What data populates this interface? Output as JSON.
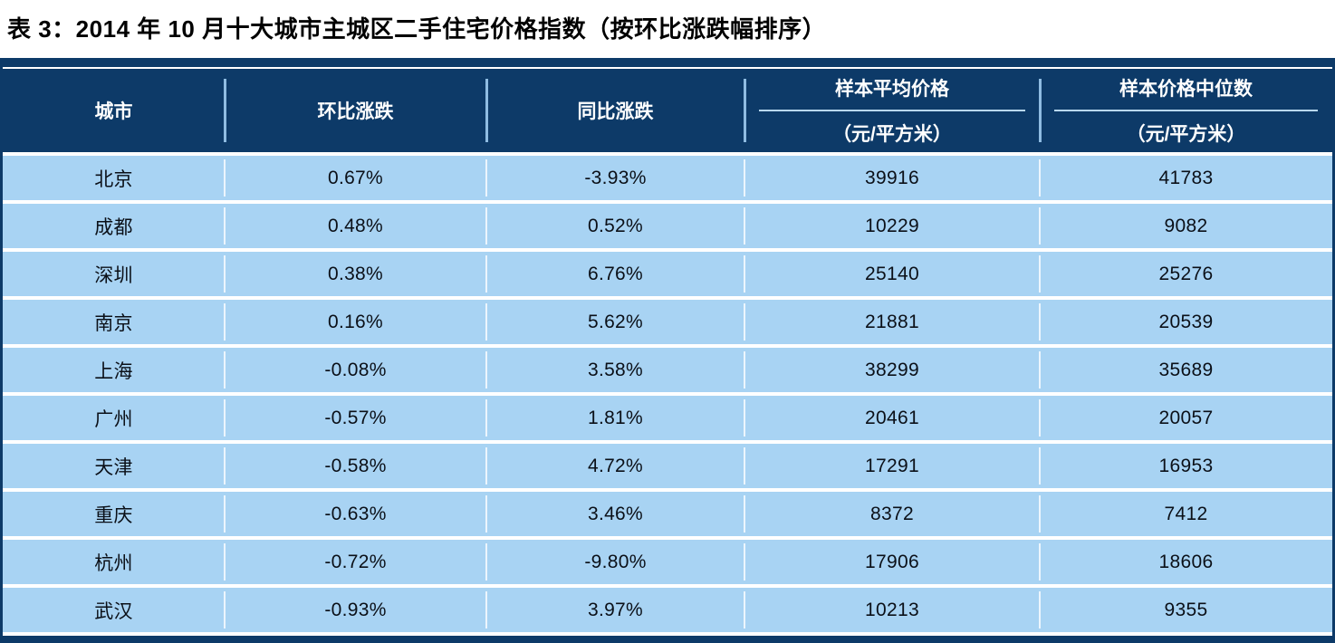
{
  "title": "表 3：2014 年 10 月十大城市主城区二手住宅价格指数（按环比涨跌幅排序）",
  "colors": {
    "header_bg": "#0d3a68",
    "row_bg": "#a8d3f3",
    "header_text": "#ffffff",
    "body_text": "#0b1018"
  },
  "table": {
    "columns": [
      {
        "label": "城市",
        "sub": ""
      },
      {
        "label": "环比涨跌",
        "sub": ""
      },
      {
        "label": "同比涨跌",
        "sub": ""
      },
      {
        "label": "样本平均价格",
        "sub": "（元/平方米）"
      },
      {
        "label": "样本价格中位数",
        "sub": "（元/平方米）"
      }
    ],
    "rows": [
      {
        "city": "北京",
        "mom": "0.67%",
        "yoy": "-3.93%",
        "avg": "39916",
        "median": "41783"
      },
      {
        "city": "成都",
        "mom": "0.48%",
        "yoy": "0.52%",
        "avg": "10229",
        "median": "9082"
      },
      {
        "city": "深圳",
        "mom": "0.38%",
        "yoy": "6.76%",
        "avg": "25140",
        "median": "25276"
      },
      {
        "city": "南京",
        "mom": "0.16%",
        "yoy": "5.62%",
        "avg": "21881",
        "median": "20539"
      },
      {
        "city": "上海",
        "mom": "-0.08%",
        "yoy": "3.58%",
        "avg": "38299",
        "median": "35689"
      },
      {
        "city": "广州",
        "mom": "-0.57%",
        "yoy": "1.81%",
        "avg": "20461",
        "median": "20057"
      },
      {
        "city": "天津",
        "mom": "-0.58%",
        "yoy": "4.72%",
        "avg": "17291",
        "median": "16953"
      },
      {
        "city": "重庆",
        "mom": "-0.63%",
        "yoy": "3.46%",
        "avg": "8372",
        "median": "7412"
      },
      {
        "city": "杭州",
        "mom": "-0.72%",
        "yoy": "-9.80%",
        "avg": "17906",
        "median": "18606"
      },
      {
        "city": "武汉",
        "mom": "-0.93%",
        "yoy": "3.97%",
        "avg": "10213",
        "median": "9355"
      }
    ]
  }
}
